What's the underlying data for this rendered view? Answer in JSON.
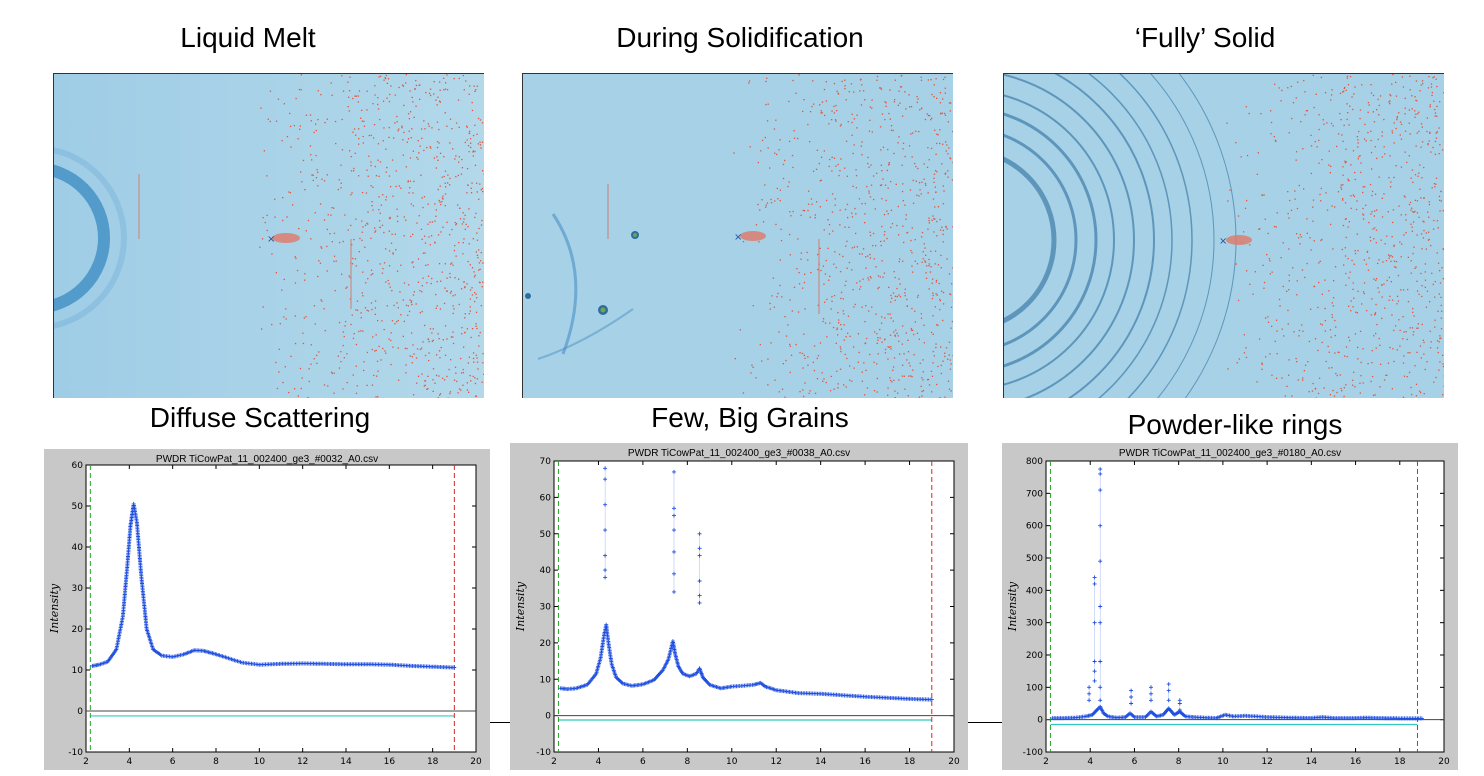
{
  "titles": {
    "melt": "Liquid Melt",
    "during": "During Solidification",
    "solid": "‘Fully’ Solid",
    "diffuse": "Diffuse Scattering",
    "few": "Few, Big Grains",
    "powder": "Powder-like rings"
  },
  "colors": {
    "detector_bg": "#a9d3e8",
    "ring": "#2f7fb8",
    "speckle": "#e0553b",
    "data_points": "#1f4fe0",
    "fit_line": "#33c8c0",
    "lower_limit": "#2ca02c",
    "upper_limit": "#d62728",
    "plot_frame": "#c8c8c8"
  },
  "chart_data": [
    {
      "type": "scatter",
      "title": "PWDR TiCowPat_11_002400_ge3_#0032_A0.csv",
      "ylabel": "Intensity",
      "xlim": [
        2,
        20
      ],
      "ylim": [
        -10,
        60
      ],
      "xticks": [
        2,
        4,
        6,
        8,
        10,
        12,
        14,
        16,
        18,
        20
      ],
      "yticks": [
        -10,
        0,
        10,
        20,
        30,
        40,
        50,
        60
      ],
      "limits": [
        2.2,
        19.0
      ],
      "difference_level": -1.2,
      "x": [
        2.3,
        2.6,
        3.0,
        3.4,
        3.7,
        3.9,
        4.05,
        4.2,
        4.35,
        4.55,
        4.8,
        5.1,
        5.5,
        6.0,
        6.5,
        7.0,
        7.4,
        7.9,
        8.5,
        9.2,
        10.0,
        11.0,
        12.0,
        13.0,
        14.0,
        15.0,
        16.0,
        17.0,
        18.0,
        19.0
      ],
      "y": [
        11,
        11.3,
        12,
        15,
        23,
        35,
        45,
        50.5,
        46,
        33,
        20,
        15,
        13.5,
        13.2,
        13.8,
        14.8,
        14.7,
        14,
        13,
        11.8,
        11.3,
        11.5,
        11.6,
        11.5,
        11.4,
        11.4,
        11.3,
        11,
        10.8,
        10.6
      ],
      "spikes": []
    },
    {
      "type": "scatter",
      "title": "PWDR TiCowPat_11_002400_ge3_#0038_A0.csv",
      "ylabel": "Intensity",
      "xlim": [
        2,
        20
      ],
      "ylim": [
        -10,
        70
      ],
      "xticks": [
        2,
        4,
        6,
        8,
        10,
        12,
        14,
        16,
        18,
        20
      ],
      "yticks": [
        -10,
        0,
        10,
        20,
        30,
        40,
        50,
        60,
        70
      ],
      "limits": [
        2.2,
        19.0
      ],
      "difference_level": -1.2,
      "x": [
        2.3,
        2.6,
        3.0,
        3.5,
        3.9,
        4.1,
        4.25,
        4.35,
        4.45,
        4.6,
        4.8,
        5.1,
        5.5,
        6.0,
        6.5,
        6.9,
        7.15,
        7.35,
        7.45,
        7.6,
        7.8,
        8.1,
        8.4,
        8.55,
        8.7,
        9.0,
        9.5,
        10.0,
        10.5,
        11.0,
        11.3,
        11.5,
        12.0,
        13.0,
        14.0,
        15.0,
        16.0,
        17.0,
        18.0,
        19.0
      ],
      "y": [
        7.5,
        7.3,
        7.5,
        8.5,
        11.5,
        16,
        22,
        25,
        20,
        14,
        10.5,
        8.8,
        8.2,
        8.6,
        9.8,
        12.5,
        15.5,
        20.5,
        17,
        13.5,
        11.5,
        10.8,
        11.5,
        13,
        10.5,
        8.5,
        7.5,
        8,
        8.2,
        8.5,
        9,
        8,
        7,
        6.2,
        6,
        5.6,
        5.2,
        4.9,
        4.6,
        4.4
      ],
      "spikes": [
        {
          "x": 4.3,
          "y": [
            38,
            40,
            44,
            51,
            58,
            65,
            68
          ]
        },
        {
          "x": 7.4,
          "y": [
            34,
            39,
            45,
            51,
            55,
            57,
            67
          ]
        },
        {
          "x": 8.55,
          "y": [
            31,
            33,
            37,
            44,
            46,
            50
          ]
        }
      ]
    },
    {
      "type": "scatter",
      "title": "PWDR TiCowPat_11_002400_ge3_#0180_A0.csv",
      "ylabel": "Intensity",
      "xlim": [
        2,
        20
      ],
      "ylim": [
        -100,
        800
      ],
      "xticks": [
        2,
        4,
        6,
        8,
        10,
        12,
        14,
        16,
        18,
        20
      ],
      "yticks": [
        -100,
        0,
        100,
        200,
        300,
        400,
        500,
        600,
        700,
        800
      ],
      "limits": [
        2.2,
        18.8
      ],
      "difference_level": -15,
      "x": [
        2.3,
        2.8,
        3.3,
        3.8,
        4.1,
        4.3,
        4.45,
        4.6,
        4.8,
        5.2,
        5.6,
        5.8,
        6.0,
        6.5,
        6.75,
        7.0,
        7.3,
        7.55,
        7.8,
        8.05,
        8.3,
        8.7,
        9.2,
        9.7,
        10.1,
        10.5,
        11.0,
        11.5,
        12.0,
        12.5,
        13.0,
        14.0,
        14.5,
        15.0,
        16.0,
        16.5,
        17.0,
        18.0,
        19.0
      ],
      "y": [
        5,
        5,
        6,
        10,
        15,
        30,
        40,
        20,
        10,
        6,
        8,
        20,
        8,
        8,
        25,
        10,
        15,
        35,
        15,
        25,
        10,
        8,
        6,
        5,
        15,
        10,
        12,
        10,
        8,
        7,
        6,
        5,
        8,
        5,
        5,
        6,
        5,
        4,
        4
      ],
      "spikes": [
        {
          "x": 3.95,
          "y": [
            60,
            80,
            100
          ]
        },
        {
          "x": 4.2,
          "y": [
            120,
            150,
            180,
            300,
            420,
            440
          ]
        },
        {
          "x": 4.45,
          "y": [
            60,
            100,
            180,
            300,
            350,
            490,
            600,
            710,
            760,
            775
          ]
        },
        {
          "x": 5.85,
          "y": [
            50,
            70,
            90
          ]
        },
        {
          "x": 6.75,
          "y": [
            60,
            80,
            100
          ]
        },
        {
          "x": 7.55,
          "y": [
            60,
            90,
            110
          ]
        },
        {
          "x": 8.05,
          "y": [
            30,
            50,
            60
          ]
        }
      ]
    }
  ]
}
